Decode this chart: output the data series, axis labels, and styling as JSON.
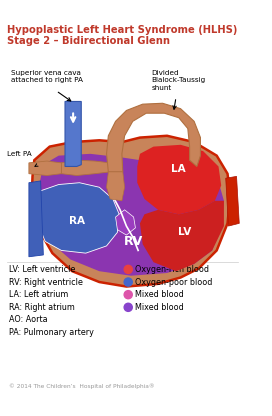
{
  "title_line1": "Hypoplastic Left Heart Syndrome (HLHS)",
  "title_line2": "Stage 2 – Bidirectional Glenn",
  "title_color": "#c0392b",
  "bg_color": "#ffffff",
  "label_RA": "RA",
  "label_LA": "LA",
  "label_LV": "LV",
  "label_RV": "RV",
  "color_heart_wall": "#c8845a",
  "color_heart_wall_dark": "#b07040",
  "color_heart_border": "#cc2200",
  "color_RV": "#8b35b0",
  "color_LA": "#dd2222",
  "color_LV": "#cc2020",
  "color_RA_blue": "#4060b8",
  "color_aorta": "#c8845a",
  "color_aorta_dark": "#b07040",
  "color_SVC": "#5577cc",
  "color_SVC_dark": "#3355aa",
  "color_red_border": "#cc2200",
  "legend_items_left": [
    "LV: Left ventricle",
    "RV: Right ventricle",
    "LA: Left atrium",
    "RA: Right atrium",
    "AO: Aorta",
    "PA: Pulmonary artery"
  ],
  "legend_items_right": [
    "Oxygen-rich blood",
    "Oxygen-poor blood",
    "Mixed blood",
    "Mixed blood"
  ],
  "legend_colors_right": [
    "#e84040",
    "#4466cc",
    "#dd55aa",
    "#8844cc"
  ],
  "annotation_svc": "Superior vena cava\nattached to right PA",
  "annotation_shunt": "Divided\nBlalock-Taussig\nshunt",
  "annotation_leftpa": "Left PA",
  "copyright": "© 2014 The Children’s  Hospital of Philadelphia®"
}
